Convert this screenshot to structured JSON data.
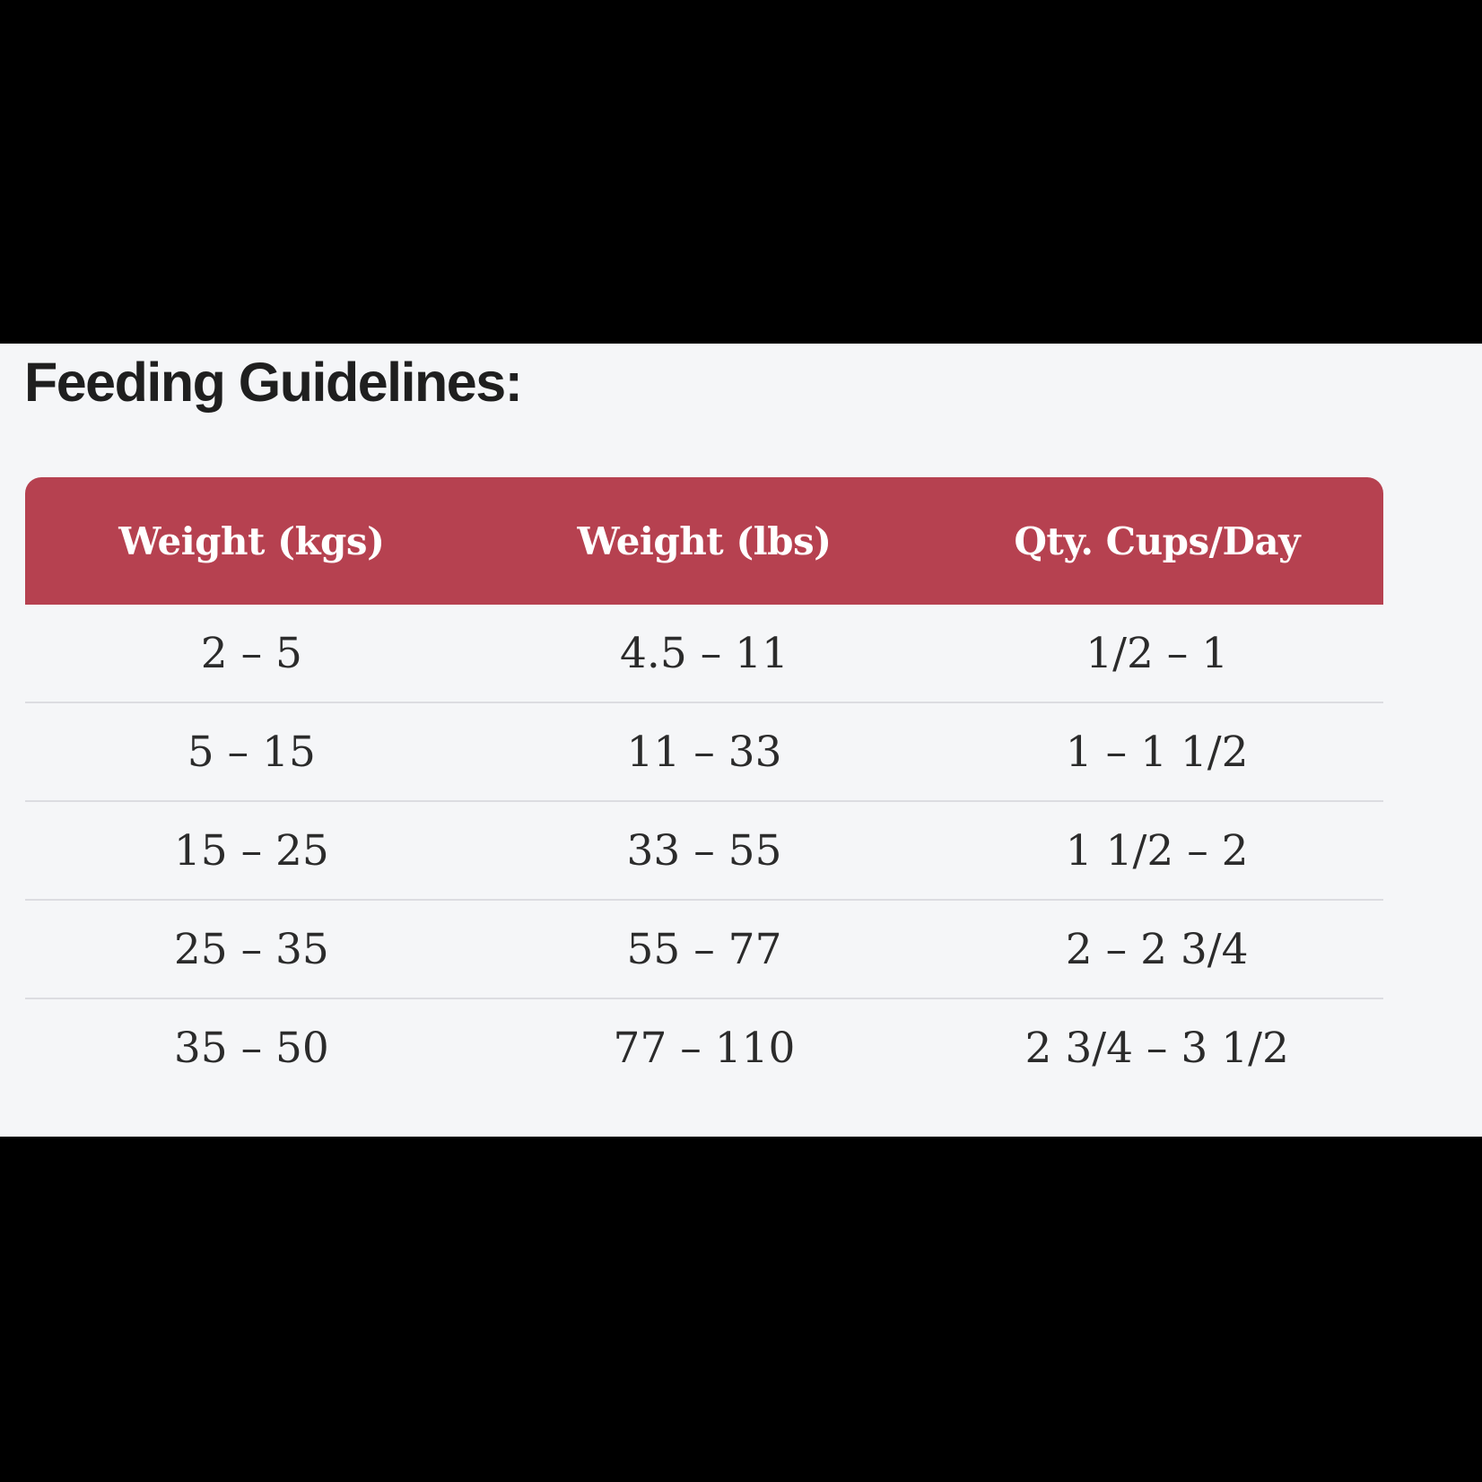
{
  "page": {
    "letterbox_color": "#000000",
    "content_background": "#f5f6f8"
  },
  "section": {
    "title": "Feeding Guidelines:"
  },
  "table": {
    "header_background": "#b64150",
    "header_text_color": "#ffffff",
    "divider_color": "#dcdce1",
    "columns": [
      "Weight (kgs)",
      "Weight (lbs)",
      "Qty. Cups/Day"
    ],
    "rows": [
      [
        "2 – 5",
        "4.5 – 11",
        "1/2 – 1"
      ],
      [
        "5 – 15",
        "11 – 33",
        "1 – 1 1/2"
      ],
      [
        "15 – 25",
        "33 – 55",
        "1 1/2 – 2"
      ],
      [
        "25 – 35",
        "55 – 77",
        "2 – 2 3/4"
      ],
      [
        "35 – 50",
        "77 – 110",
        "2 3/4 – 3 1/2"
      ]
    ]
  }
}
